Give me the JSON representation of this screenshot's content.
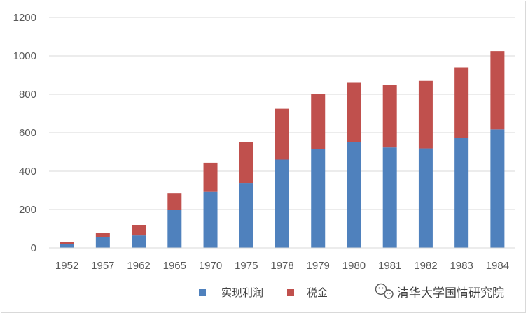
{
  "chart_data": {
    "type": "bar",
    "stacked": true,
    "categories": [
      "1952",
      "1957",
      "1962",
      "1965",
      "1970",
      "1975",
      "1978",
      "1979",
      "1980",
      "1981",
      "1982",
      "1983",
      "1984"
    ],
    "series": [
      {
        "name": "实现利润",
        "color": "#4f81bd",
        "values": [
          20,
          58,
          65,
          198,
          292,
          338,
          460,
          515,
          550,
          523,
          518,
          573,
          617
        ]
      },
      {
        "name": "税金",
        "color": "#c0504d",
        "values": [
          10,
          22,
          55,
          85,
          152,
          212,
          265,
          287,
          310,
          327,
          352,
          367,
          408
        ]
      }
    ],
    "yticks": [
      "0",
      "200",
      "400",
      "600",
      "800",
      "1000",
      "1200"
    ],
    "ylim": [
      0,
      1200
    ],
    "grid": true,
    "legend_position": "bottom"
  },
  "watermark": {
    "text": "清华大学国情研究院",
    "icon": "wechat-icon"
  }
}
